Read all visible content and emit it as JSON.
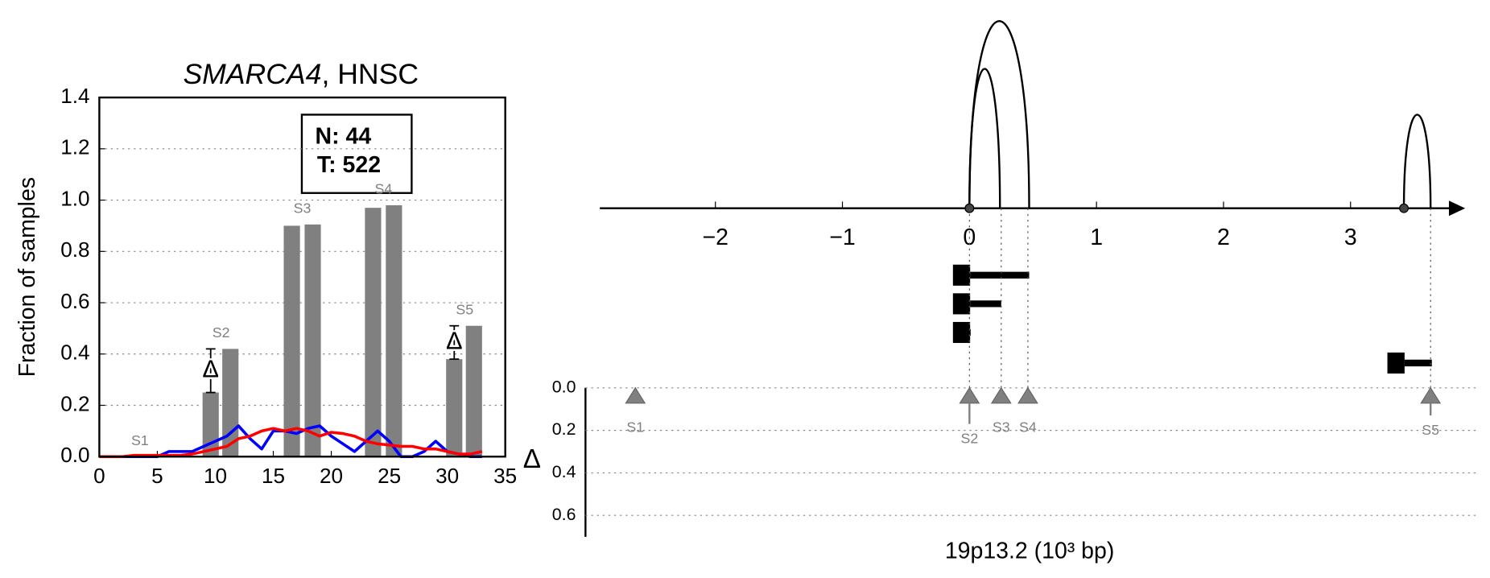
{
  "chart_data": [
    {
      "type": "bar",
      "title_gene": "SMARCA4",
      "title_rest": ", HNSC",
      "ylabel": "Fraction of samples",
      "xlim": [
        0,
        35
      ],
      "xticks": [
        0,
        5,
        10,
        15,
        20,
        25,
        30,
        35
      ],
      "ylim": [
        0,
        1.4
      ],
      "yticks": [
        {
          "value": 0,
          "label": "0.0"
        },
        0.2,
        0.4,
        0.6,
        0.8,
        {
          "value": 1,
          "label": "1.0"
        },
        1.2,
        1.4
      ],
      "grid": true,
      "bars": {
        "color": "#808080",
        "width": 1.4,
        "x": [
          9.6,
          11.3,
          16.6,
          18.4,
          23.6,
          25.4,
          30.6,
          32.3
        ],
        "values": [
          0.25,
          0.42,
          0.9,
          0.905,
          0.97,
          0.98,
          0.38,
          0.51
        ],
        "errors": [
          0.17,
          null,
          null,
          null,
          null,
          null,
          0.13,
          null
        ]
      },
      "delta_symbol": "Δ",
      "segments": [
        {
          "label": "S1",
          "x": 3.5
        },
        {
          "label": "S2",
          "x": 10.5
        },
        {
          "label": "S3",
          "x": 17.5
        },
        {
          "label": "S4",
          "x": 24.5
        },
        {
          "label": "S5",
          "x": 31.5
        }
      ],
      "x": [
        0,
        1,
        2,
        3,
        4,
        5,
        6,
        7,
        8,
        9,
        10,
        11,
        12,
        13,
        14,
        15,
        16,
        17,
        18,
        19,
        20,
        21,
        22,
        23,
        24,
        25,
        26,
        27,
        28,
        29,
        30,
        31,
        32,
        33
      ],
      "series": [
        {
          "color": "#0000ff",
          "values": [
            0,
            0,
            0,
            0,
            0,
            0,
            0.02,
            0.02,
            0.02,
            0.04,
            0.06,
            0.08,
            0.12,
            0.07,
            0.03,
            0.1,
            0.1,
            0.09,
            0.11,
            0.12,
            0.08,
            0.05,
            0.02,
            0.06,
            0.1,
            0.06,
            0,
            0,
            0.02,
            0.06,
            0.02,
            0.01,
            0,
            0
          ]
        },
        {
          "color": "#ff0000",
          "values": [
            0,
            0,
            0,
            0.005,
            0.005,
            0.005,
            0.005,
            0.005,
            0.01,
            0.02,
            0.03,
            0.04,
            0.07,
            0.08,
            0.1,
            0.11,
            0.1,
            0.11,
            0.1,
            0.08,
            0.095,
            0.09,
            0.08,
            0.06,
            0.05,
            0.045,
            0.04,
            0.04,
            0.03,
            0.03,
            0.02,
            0.01,
            0.01,
            0.02
          ]
        }
      ],
      "box": [
        "N: 44",
        "T: 522"
      ]
    },
    {
      "type": "loops",
      "xlim": [
        -3,
        4
      ],
      "xticks": [
        {
          "value": -2,
          "label": "−2"
        },
        {
          "value": -1,
          "label": "−1"
        },
        0,
        1,
        2,
        3
      ],
      "loops": [
        {
          "start": 0,
          "end": 0.24,
          "height": 1.46
        },
        {
          "start": 0,
          "end": 0.47,
          "height": 1.96
        },
        {
          "start": 3.42,
          "end": 3.63,
          "height": 0.98
        }
      ],
      "features": [
        {
          "start": -0.13,
          "end": 0.47
        },
        {
          "start": -0.13,
          "end": 0.25
        },
        {
          "start": -0.13,
          "end": 0.01
        },
        {
          "start": 3.29,
          "end": 3.64
        }
      ],
      "ylabel": "Δ",
      "ylim": [
        0,
        0.7
      ],
      "yticks": [
        {
          "value": 0,
          "label": "0.0"
        },
        0.2,
        0.4,
        0.6
      ],
      "segments": [
        {
          "label": "S1",
          "x": -2.63,
          "delta": null
        },
        {
          "label": "S2",
          "x": 0,
          "delta": 0.17
        },
        {
          "label": "S3",
          "x": 0.25,
          "delta": null
        },
        {
          "label": "S4",
          "x": 0.46,
          "delta": null
        },
        {
          "label": "S5",
          "x": 3.63,
          "delta": 0.13
        }
      ],
      "xlabel": "19p13.2 (10³ bp)"
    }
  ]
}
